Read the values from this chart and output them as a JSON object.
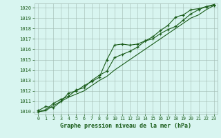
{
  "xlabel": "Graphe pression niveau de la mer (hPa)",
  "ylim": [
    1009.8,
    1020.4
  ],
  "xlim": [
    -0.5,
    23.5
  ],
  "yticks": [
    1010,
    1011,
    1012,
    1013,
    1014,
    1015,
    1016,
    1017,
    1018,
    1019,
    1020
  ],
  "xticks": [
    0,
    1,
    2,
    3,
    4,
    5,
    6,
    7,
    8,
    9,
    10,
    11,
    12,
    13,
    14,
    15,
    16,
    17,
    18,
    19,
    20,
    21,
    22,
    23
  ],
  "bg_color": "#d8f5f0",
  "grid_color": "#a0b8b0",
  "line_color": "#1a5c1a",
  "line1": [
    1010.1,
    1010.5,
    1010.4,
    1011.0,
    1011.8,
    1012.0,
    1012.5,
    1012.9,
    1013.3,
    1015.0,
    1016.4,
    1016.5,
    1016.4,
    1016.5,
    1016.8,
    1017.2,
    1017.8,
    1018.3,
    1019.1,
    1019.3,
    1019.8,
    1019.9,
    1020.1,
    1020.2
  ],
  "line2": [
    1010.0,
    1010.2,
    1010.8,
    1011.2,
    1011.5,
    1012.1,
    1012.3,
    1013.0,
    1013.5,
    1013.9,
    1015.2,
    1015.5,
    1015.8,
    1016.2,
    1016.8,
    1017.0,
    1017.5,
    1017.9,
    1018.2,
    1018.8,
    1019.4,
    1019.8,
    1020.1,
    1020.3
  ],
  "line3": [
    1010.0,
    1010.1,
    1010.6,
    1011.0,
    1011.4,
    1011.7,
    1012.0,
    1012.5,
    1013.0,
    1013.4,
    1014.0,
    1014.5,
    1015.0,
    1015.5,
    1016.0,
    1016.5,
    1017.0,
    1017.5,
    1018.0,
    1018.5,
    1019.0,
    1019.3,
    1019.8,
    1020.2
  ]
}
